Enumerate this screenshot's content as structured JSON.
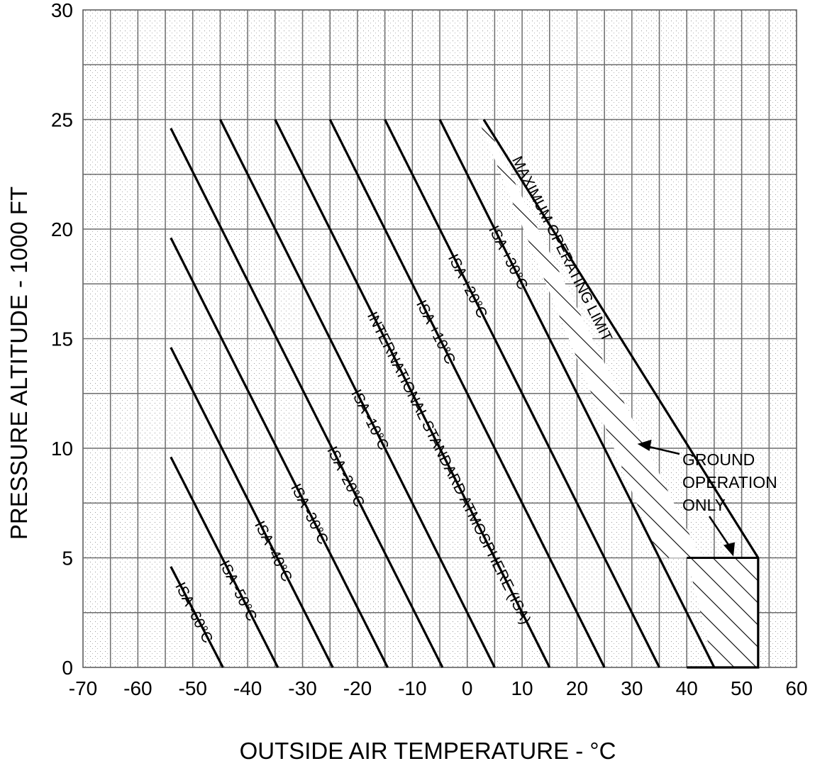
{
  "chart_data": {
    "type": "line",
    "title": "",
    "xlabel": "OUTSIDE AIR TEMPERATURE - °C",
    "ylabel": "PRESSURE ALTITUDE - 1000 FT",
    "xlim": [
      -70,
      60
    ],
    "ylim": [
      0,
      30
    ],
    "x_ticks": [
      "-70",
      "-60",
      "-50",
      "-40",
      "-30",
      "-20",
      "-10",
      "0",
      "10",
      "20",
      "30",
      "40",
      "50",
      "60"
    ],
    "y_ticks": [
      "0",
      "5",
      "10",
      "15",
      "20",
      "25",
      "30"
    ],
    "grid": true,
    "series": [
      {
        "name": "ISA -60°C",
        "x": [
          -54,
          -44.5
        ],
        "y": [
          4.6,
          0
        ]
      },
      {
        "name": "ISA -50°C",
        "x": [
          -54,
          -34.5
        ],
        "y": [
          9.6,
          0
        ]
      },
      {
        "name": "ISA -40°C",
        "x": [
          -54,
          -24.5
        ],
        "y": [
          14.6,
          0
        ]
      },
      {
        "name": "ISA -30°C",
        "x": [
          -54,
          -14.5
        ],
        "y": [
          19.6,
          0
        ]
      },
      {
        "name": "ISA -20°C",
        "x": [
          -54,
          -4.5
        ],
        "y": [
          24.6,
          0
        ]
      },
      {
        "name": "ISA -10°C",
        "x": [
          -45,
          5
        ],
        "y": [
          25,
          0
        ]
      },
      {
        "name": "INTERNATIONAL STANDARD ATMOSPHERE (ISA)",
        "x": [
          -35,
          15
        ],
        "y": [
          25,
          0
        ]
      },
      {
        "name": "ISA +10°C",
        "x": [
          -25,
          25
        ],
        "y": [
          25,
          0
        ]
      },
      {
        "name": "ISA +20°C",
        "x": [
          -15,
          35
        ],
        "y": [
          25,
          0
        ]
      },
      {
        "name": "ISA +30°C",
        "x": [
          -5,
          45
        ],
        "y": [
          25,
          0
        ]
      },
      {
        "name": "MAXIMUM OPERATING LIMIT",
        "x": [
          3,
          53,
          53,
          40
        ],
        "y": [
          25,
          5,
          0,
          0
        ]
      }
    ],
    "annotations": [
      {
        "text": "GROUND",
        "x": 31,
        "y": 10.2
      },
      {
        "text": "OPERATION",
        "x": 31,
        "y": 10.2
      },
      {
        "text": "ONLY",
        "x": 48.5,
        "y": 5
      }
    ]
  }
}
